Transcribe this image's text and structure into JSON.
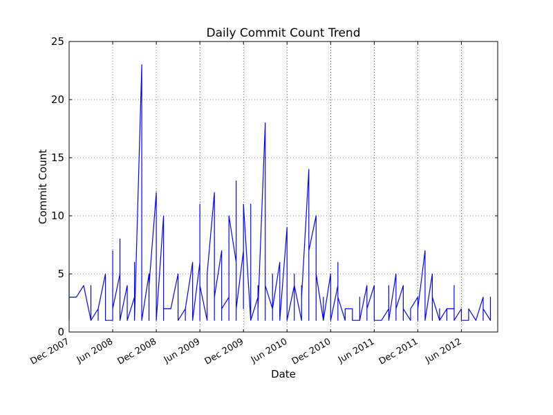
{
  "chart_data": {
    "type": "line",
    "title": "Daily Commit Count Trend",
    "x_label": "Date",
    "y_label": "Commit Count",
    "color": "#0000ff",
    "grid": true,
    "xlim": [
      "2007-12",
      "2012-11"
    ],
    "xticks": [
      {
        "value": "2007-12",
        "label": "Dec 2007"
      },
      {
        "value": "2008-06",
        "label": "Jun 2008"
      },
      {
        "value": "2008-12",
        "label": "Dec 2008"
      },
      {
        "value": "2009-06",
        "label": "Jun 2009"
      },
      {
        "value": "2009-12",
        "label": "Dec 2009"
      },
      {
        "value": "2010-06",
        "label": "Jun 2010"
      },
      {
        "value": "2010-12",
        "label": "Dec 2010"
      },
      {
        "value": "2011-06",
        "label": "Jun 2011"
      },
      {
        "value": "2011-12",
        "label": "Dec 2011"
      },
      {
        "value": "2012-06",
        "label": "Jun 2012"
      }
    ],
    "ylim": [
      0,
      25
    ],
    "yticks": [
      0,
      5,
      10,
      15,
      20,
      25
    ],
    "x": [
      "2007-12",
      "2007-12",
      "2007-12",
      "2007-12",
      "2007-12",
      "2008-01",
      "2008-02",
      "2008-03",
      "2008-03",
      "2008-03",
      "2008-03",
      "2008-04",
      "2008-04",
      "2008-04",
      "2008-05",
      "2008-05",
      "2008-05",
      "2008-06",
      "2008-06",
      "2008-06",
      "2008-06",
      "2008-06",
      "2008-07",
      "2008-07",
      "2008-07",
      "2008-07",
      "2008-07",
      "2008-07",
      "2008-08",
      "2008-08",
      "2008-08",
      "2008-08",
      "2008-08",
      "2008-09",
      "2008-09",
      "2008-09",
      "2008-09",
      "2008-10",
      "2008-10",
      "2008-10",
      "2008-10",
      "2008-10",
      "2008-11",
      "2008-11",
      "2008-11",
      "2008-12",
      "2008-12",
      "2008-12",
      "2008-12",
      "2009-01",
      "2009-01",
      "2009-01",
      "2009-01",
      "2009-01",
      "2009-02",
      "2009-02",
      "2009-03",
      "2009-03",
      "2009-03",
      "2009-04",
      "2009-04",
      "2009-04",
      "2009-05",
      "2009-05",
      "2009-05",
      "2009-06",
      "2009-06",
      "2009-06",
      "2009-06",
      "2009-06",
      "2009-07",
      "2009-07",
      "2009-07",
      "2009-08",
      "2009-08",
      "2009-08",
      "2009-09",
      "2009-09",
      "2009-09",
      "2009-10",
      "2009-10",
      "2009-10",
      "2009-10",
      "2009-11",
      "2009-11",
      "2009-11",
      "2009-11",
      "2009-12",
      "2009-12",
      "2009-12",
      "2010-01",
      "2010-01",
      "2010-01",
      "2010-01",
      "2010-01",
      "2010-02",
      "2010-02",
      "2010-02",
      "2010-02",
      "2010-03",
      "2010-03",
      "2010-03",
      "2010-03",
      "2010-03",
      "2010-03",
      "2010-04",
      "2010-04",
      "2010-04",
      "2010-04",
      "2010-04",
      "2010-05",
      "2010-05",
      "2010-05",
      "2010-05",
      "2010-06",
      "2010-06",
      "2010-06",
      "2010-06",
      "2010-06",
      "2010-07",
      "2010-07",
      "2010-07",
      "2010-07",
      "2010-08",
      "2010-08",
      "2010-08",
      "2010-09",
      "2010-09",
      "2010-09",
      "2010-10",
      "2010-10",
      "2010-10",
      "2010-10",
      "2010-11",
      "2010-11",
      "2010-11",
      "2010-11",
      "2010-12",
      "2010-12",
      "2010-12",
      "2011-01",
      "2011-01",
      "2011-01",
      "2011-01",
      "2011-01",
      "2011-02",
      "2011-02",
      "2011-03",
      "2011-03",
      "2011-04",
      "2011-04",
      "2011-04",
      "2011-05",
      "2011-05",
      "2011-05",
      "2011-06",
      "2011-06",
      "2011-07",
      "2011-07",
      "2011-08",
      "2011-08",
      "2011-08",
      "2011-09",
      "2011-09",
      "2011-09",
      "2011-10",
      "2011-10",
      "2011-10",
      "2011-11",
      "2011-11",
      "2011-12",
      "2011-12",
      "2011-12",
      "2012-01",
      "2012-01",
      "2012-02",
      "2012-02",
      "2012-02",
      "2012-03",
      "2012-03",
      "2012-03",
      "2012-04",
      "2012-04",
      "2012-04",
      "2012-05",
      "2012-05",
      "2012-05",
      "2012-06",
      "2012-06",
      "2012-07",
      "2012-07",
      "2012-08",
      "2012-08",
      "2012-09",
      "2012-09",
      "2012-09",
      "2012-10",
      "2012-10",
      "2012-10",
      "2012-10"
    ],
    "values": [
      3,
      4,
      1,
      5,
      3,
      3,
      4,
      1,
      2,
      4,
      1,
      2,
      1,
      2,
      5,
      1,
      1,
      1,
      7,
      1,
      4,
      2,
      5,
      2,
      8,
      1,
      6,
      1,
      4,
      1,
      2,
      4,
      1,
      3,
      1,
      6,
      1,
      23,
      1,
      6,
      12,
      1,
      5,
      1,
      4,
      12,
      1,
      3,
      1,
      10,
      10,
      1,
      7,
      2,
      2,
      2,
      5,
      2,
      1,
      2,
      1,
      2,
      6,
      2,
      1,
      6,
      2,
      11,
      1,
      4,
      1,
      4,
      5,
      12,
      1,
      3,
      7,
      1,
      2,
      3,
      6,
      1,
      10,
      6,
      13,
      1,
      2,
      7,
      2,
      11,
      1,
      11,
      3,
      4,
      1,
      3,
      1,
      4,
      2,
      18,
      1,
      7,
      12,
      1,
      4,
      2,
      5,
      1,
      5,
      2,
      6,
      1,
      6,
      1,
      9,
      1,
      7,
      2,
      1,
      4,
      1,
      5,
      4,
      1,
      4,
      3,
      14,
      1,
      7,
      10,
      1,
      3,
      5,
      1,
      3,
      2,
      1,
      5,
      2,
      1,
      4,
      1,
      6,
      2,
      3,
      1,
      2,
      2,
      1,
      1,
      3,
      1,
      4,
      1,
      2,
      4,
      1,
      1,
      1,
      2,
      4,
      1,
      5,
      1,
      2,
      4,
      1,
      2,
      1,
      2,
      3,
      1,
      2,
      7,
      1,
      5,
      1,
      3,
      1,
      2,
      1,
      2,
      1,
      2,
      2,
      4,
      1,
      2,
      1,
      1,
      2,
      1,
      1,
      3,
      1,
      2,
      1,
      3,
      1,
      3
    ]
  }
}
